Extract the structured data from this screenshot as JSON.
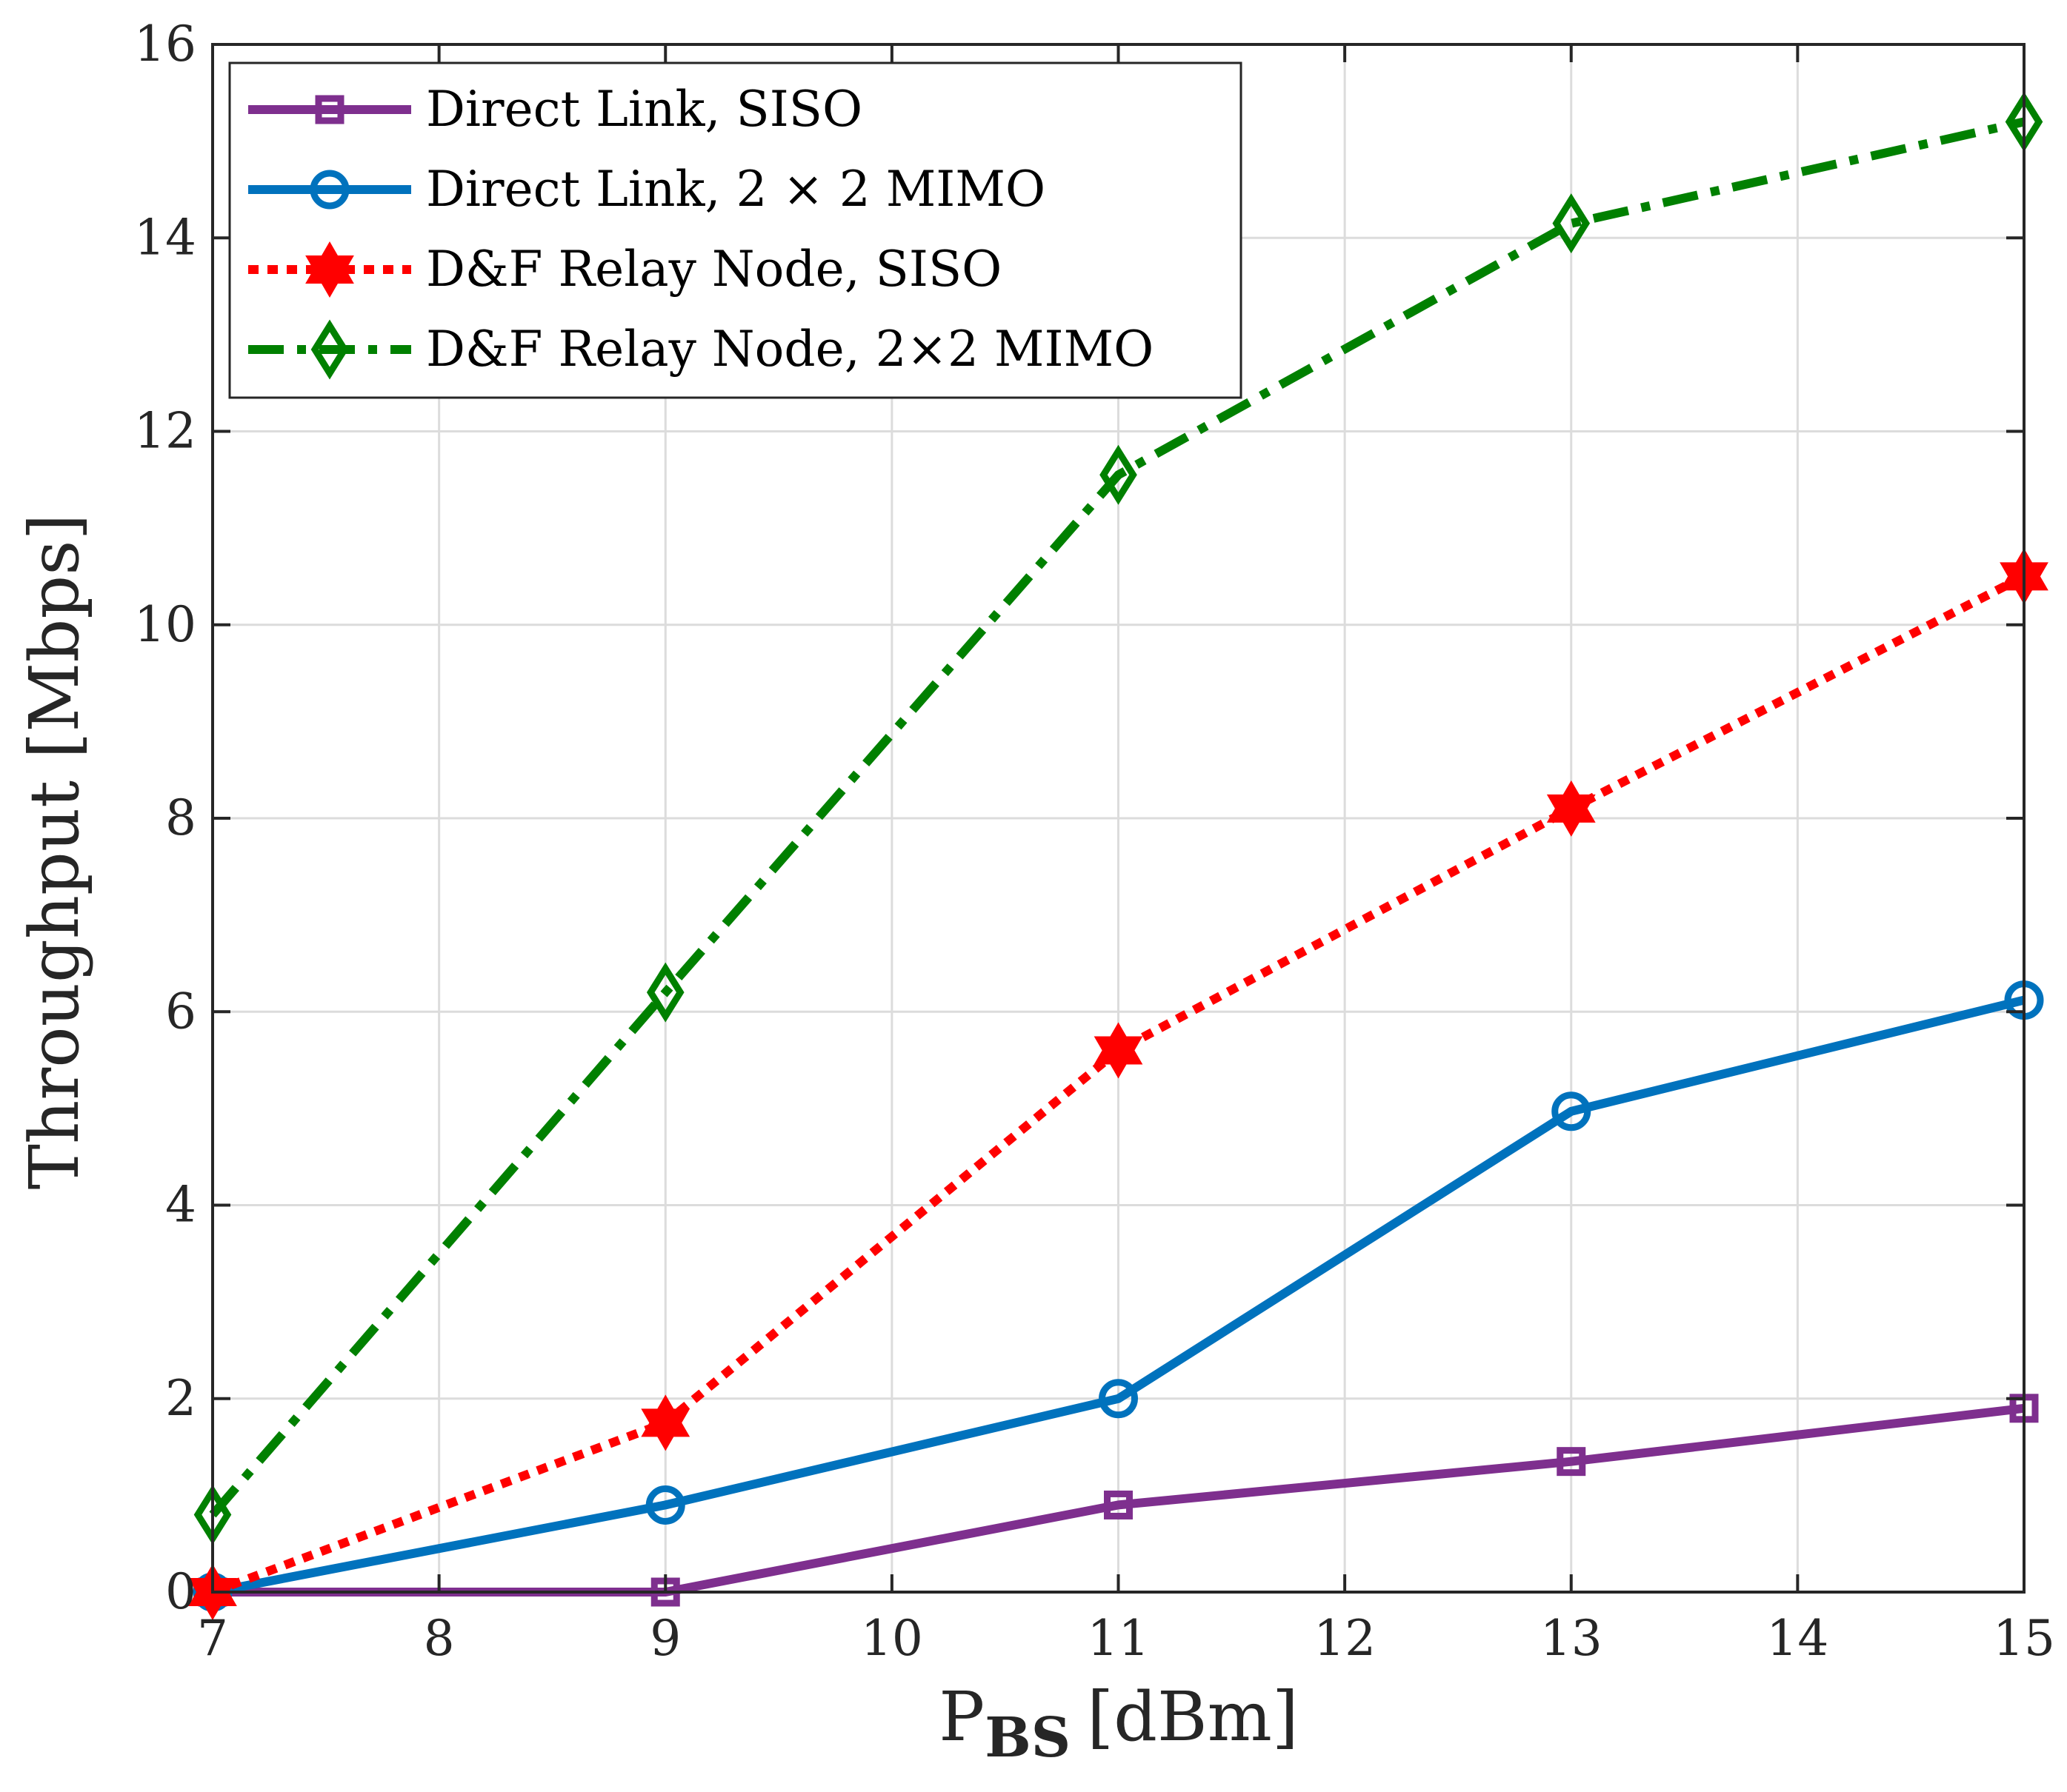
{
  "chart_data": {
    "type": "line",
    "title": "",
    "xlabel_main": "P",
    "xlabel_sub": "BS",
    "xlabel_unit": "[dBm]",
    "ylabel": "Throughput [Mbps]",
    "xlim": [
      7,
      15
    ],
    "ylim": [
      0,
      16
    ],
    "xticks": [
      "7",
      "8",
      "9",
      "10",
      "11",
      "12",
      "13",
      "14",
      "15"
    ],
    "yticks": [
      "0",
      "2",
      "4",
      "6",
      "8",
      "10",
      "12",
      "14",
      "16"
    ],
    "grid": true,
    "legend_position": "top-left",
    "x": [
      7,
      9,
      11,
      13,
      15
    ],
    "series": [
      {
        "name": "Direct Link, SISO",
        "color": "#7e2f8e",
        "marker": "square",
        "dash": "solid",
        "values": [
          0,
          0,
          0.9,
          1.35,
          1.9
        ]
      },
      {
        "name": "Direct Link, 2 × 2 MIMO",
        "color": "#0072bd",
        "marker": "circle",
        "dash": "solid",
        "values": [
          0,
          0.9,
          2.0,
          4.97,
          6.12
        ]
      },
      {
        "name": "D&F Relay Node, SISO",
        "color": "#ff0000",
        "marker": "hexagram",
        "dash": "dotted",
        "values": [
          0,
          1.75,
          5.6,
          8.1,
          10.5
        ]
      },
      {
        "name": "D&F Relay Node, 2×2 MIMO",
        "color": "#008000",
        "marker": "diamond",
        "dash": "dashdot",
        "values": [
          0.8,
          6.2,
          11.55,
          14.15,
          15.2
        ]
      }
    ]
  }
}
